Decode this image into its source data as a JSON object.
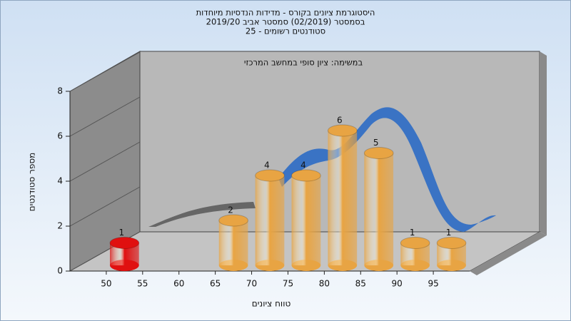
{
  "chart_data": {
    "type": "histogram",
    "title": [
      "היסטוגרמת ציונים בקורס - מדידות הנדסיות מיוחדות",
      "בסמסטר (02/2019) סמסטר אביב 2019/20",
      "סטודנטים רשומים - 25"
    ],
    "annotation": "במשימה: ציון סופי במחשב המרכזי",
    "x_label": "טווח ציונים",
    "y_label": "מספר סטודנטים",
    "bins": [
      50,
      55,
      60,
      65,
      70,
      75,
      80,
      85,
      90,
      95,
      100
    ],
    "counts": [
      1,
      0,
      0,
      2,
      4,
      4,
      6,
      5,
      1,
      1
    ],
    "colors": [
      "#e01010",
      "#e8a443",
      "#e8a443",
      "#e8a443",
      "#e8a443",
      "#e8a443",
      "#e8a443",
      "#e8a443",
      "#e8a443",
      "#e8a443"
    ],
    "xlim": [
      45,
      100
    ],
    "xticks": [
      50,
      55,
      60,
      65,
      70,
      75,
      80,
      85,
      90,
      95
    ],
    "ylim": [
      0,
      8
    ],
    "yticks": [
      0,
      2,
      4,
      6,
      8
    ],
    "grid": true
  }
}
